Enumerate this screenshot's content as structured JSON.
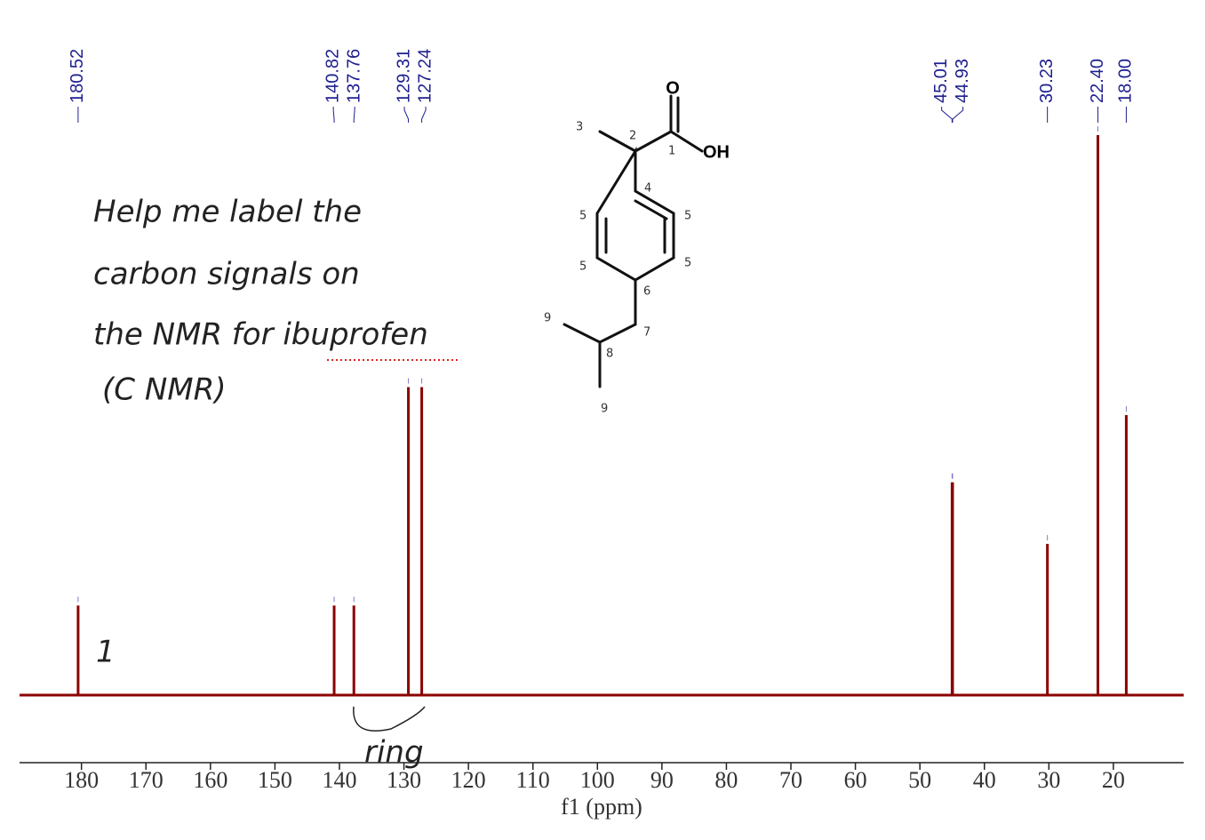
{
  "chart_data": {
    "type": "spectrum",
    "x": [
      180.52,
      140.82,
      137.76,
      129.31,
      127.24,
      45.01,
      44.93,
      30.23,
      22.4,
      18
    ],
    "x_labels": [
      "180.52",
      "140.82",
      "137.76",
      "129.31",
      "127.24",
      "45.01",
      "44.93",
      "30.23",
      "22.40",
      "18.00"
    ],
    "values": [
      16,
      16,
      16,
      55,
      55,
      38,
      38,
      27,
      100,
      50
    ],
    "ylim": [
      0,
      100
    ],
    "xlim": [
      189.6,
      9.1
    ],
    "xticks": [
      180,
      170,
      160,
      150,
      140,
      130,
      120,
      110,
      100,
      90,
      80,
      70,
      60,
      50,
      40,
      30,
      20
    ],
    "xlabel": "f1 (ppm)",
    "color": "#8b0000",
    "label_color": "#1f1f8f",
    "note": [
      "Help me label the",
      "carbon signals on",
      "the NMR for ibuprofen",
      "(C NMR)"
    ],
    "peak_note": "1",
    "ring_note": "ring",
    "atoms": [
      "O",
      "OH"
    ],
    "structure_numbers": [
      "3",
      "2",
      "1",
      "4",
      "5",
      "5",
      "5",
      "5",
      "6",
      "7",
      "8",
      "9",
      "9"
    ]
  }
}
